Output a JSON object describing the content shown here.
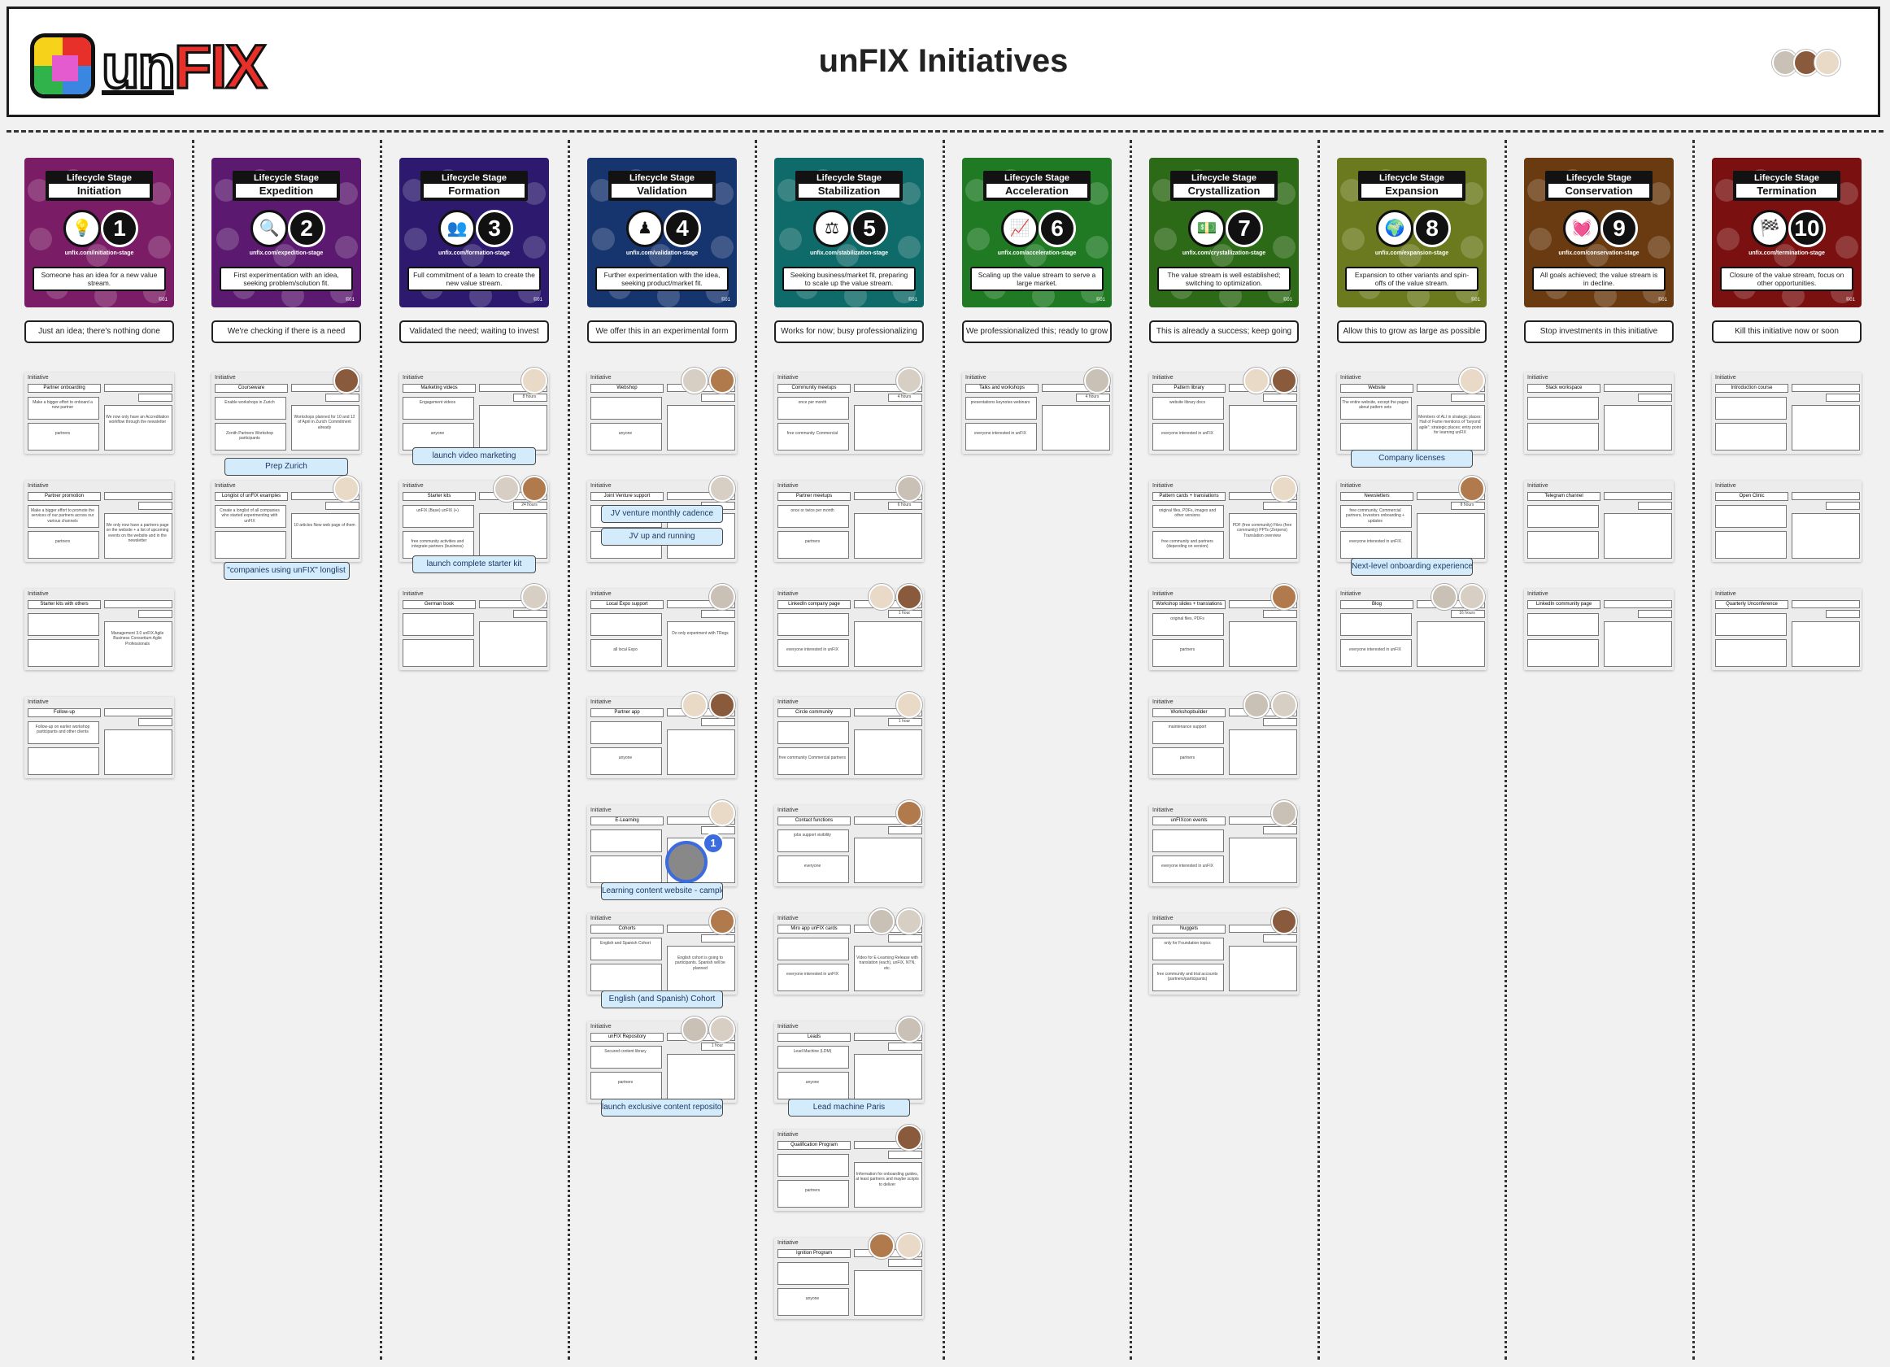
{
  "header": {
    "title": "unFIX Initiatives",
    "logo_un": "un",
    "logo_fix": "FIX"
  },
  "stage_label": "Lifecycle Stage",
  "colors": {
    "initiation": "#7a1c66",
    "expedition": "#5b1a70",
    "formation": "#2d1a6e",
    "validation": "#16356e",
    "stabilization": "#0f6a6a",
    "acceleration": "#1f7a23",
    "crystallization": "#2c6a17",
    "expansion": "#6b7a1e",
    "conservation": "#6a3a10",
    "termination": "#7a1010",
    "sticky": "#d3ebfb"
  },
  "columns": [
    {
      "key": "initiation",
      "stage": "Initiation",
      "num": "1",
      "icon": "lightbulb-icon",
      "glyph": "💡",
      "url": "unfix.com/initiation-stage",
      "desc": "Someone has an idea for a new value stream.",
      "status": "Just an idea; there's nothing done",
      "cards": [
        {
          "name": "Partner onboarding",
          "b1": "Make a bigger effort to onboard a new partner",
          "b2": "partners",
          "r3": "We now only have an Accreditation workflow through the newsletter",
          "r2": ""
        },
        {
          "name": "Partner promotion",
          "b1": "Make a bigger effort to promote the services of our partners across our various channels",
          "b2": "partners",
          "r3": "We only now have a partners page on the website + a list of upcoming events on the website and in the newsletter",
          "r2": ""
        },
        {
          "name": "Starter kits with others",
          "b1": "",
          "b2": "",
          "r3": "Management 3.0 unFIX Agile Business Consortium Agile Professionals",
          "r2": ""
        },
        {
          "name": "Follow-up",
          "b1": "Follow-up on earlier workshop participants and other clients",
          "b2": "",
          "r3": "",
          "r2": ""
        }
      ],
      "stickies": []
    },
    {
      "key": "expedition",
      "stage": "Expedition",
      "num": "2",
      "icon": "magnifier-icon",
      "glyph": "🔍",
      "url": "unfix.com/expedition-stage",
      "desc": "First experimentation with an idea, seeking problem/solution fit.",
      "status": "We're checking if there is a need",
      "cards": [
        {
          "name": "Courseware",
          "b1": "Enable workshops in Zurich",
          "b2": "Zenith Partners Workshop participants",
          "r3": "Workshops planned for 10 and 12 of April in Zurich Commitment already",
          "r2": ""
        },
        {
          "name": "Longlist of unFIX examples",
          "b1": "Create a longlist of all companies who started experimenting with unFIX",
          "b2": "",
          "r3": "10 articles New web page of them",
          "r2": ""
        }
      ],
      "stickies": [
        "Prep Zurich",
        "\"companies using unFIX\" longlist"
      ]
    },
    {
      "key": "formation",
      "stage": "Formation",
      "num": "3",
      "icon": "team-icon",
      "glyph": "👥",
      "url": "unfix.com/formation-stage",
      "desc": "Full commitment of a team to create the new value stream.",
      "status": "Validated the need; waiting to invest",
      "cards": [
        {
          "name": "Marketing videos",
          "b1": "Engagement videos",
          "b2": "anyone",
          "r3": "",
          "r2": "8 hours"
        },
        {
          "name": "Starter kits",
          "b1": "unFIX (Base) unFIX (+)",
          "b2": "free community activities and integrate partners (business)",
          "r3": "",
          "r2": "24 hours"
        },
        {
          "name": "German book",
          "b1": "",
          "b2": "",
          "r3": "",
          "r2": ""
        }
      ],
      "stickies": [
        "launch video marketing",
        "launch complete starter kit"
      ]
    },
    {
      "key": "validation",
      "stage": "Validation",
      "num": "4",
      "icon": "chess-piece-icon",
      "glyph": "♟",
      "url": "unfix.com/validation-stage",
      "desc": "Further experimentation with the idea, seeking product/market fit.",
      "status": "We offer this in an experimental form",
      "cards": [
        {
          "name": "Webshop",
          "b1": "",
          "b2": "anyone",
          "r3": "",
          "r2": ""
        },
        {
          "name": "Joint Venture support",
          "b1": "",
          "b2": "",
          "r3": "",
          "r2": ""
        },
        {
          "name": "Local Expo support",
          "b1": "",
          "b2": "all local Expo",
          "r3": "Do only experiment with TRegs",
          "r2": ""
        },
        {
          "name": "Partner app",
          "b1": "",
          "b2": "anyone",
          "r3": "",
          "r2": ""
        },
        {
          "name": "E-Learning",
          "b1": "",
          "b2": "",
          "r3": "",
          "r2": ""
        },
        {
          "name": "Cohorts",
          "b1": "English and Spanish Cohort",
          "b2": "",
          "r3": "English cohort is going to participants. Spanish will be planned",
          "r2": ""
        },
        {
          "name": "unFIX Repository",
          "b1": "Secured content library",
          "b2": "partners",
          "r3": "",
          "r2": "1 hour"
        }
      ],
      "stickies": [
        "JV venture monthly cadence",
        "JV up and running",
        "Learning content website - cample gro",
        "English (and Spanish) Cohort",
        "launch exclusive content repository"
      ]
    },
    {
      "key": "stabilization",
      "stage": "Stabilization",
      "num": "5",
      "icon": "scales-icon",
      "glyph": "⚖",
      "url": "unfix.com/stabilization-stage",
      "desc": "Seeking business/market fit, preparing to scale up the value stream.",
      "status": "Works for now; busy professionalizing",
      "cards": [
        {
          "name": "Community meetups",
          "b1": "once per month",
          "b2": "free community Commercial",
          "r3": "",
          "r2": "4 hours"
        },
        {
          "name": "Partner meetups",
          "b1": "once or twice per month",
          "b2": "partners",
          "r3": "",
          "r2": "6 hours"
        },
        {
          "name": "LinkedIn company page",
          "b1": "",
          "b2": "everyone interested in unFIX",
          "r3": "",
          "r2": "1 hour"
        },
        {
          "name": "Circle community",
          "b1": "",
          "b2": "free community Commercial partners",
          "r3": "",
          "r2": "1 hour"
        },
        {
          "name": "Contact functions",
          "b1": "jobs support visibility",
          "b2": "everyone",
          "r3": "",
          "r2": ""
        },
        {
          "name": "Miro app unFIX cards",
          "b1": "",
          "b2": "everyone interested in unFIX",
          "r3": "Video for E-Learning Release with translation (each), unFIX, NTN, etc.",
          "r2": ""
        },
        {
          "name": "Leads",
          "b1": "Lead Machine (LDM)",
          "b2": "anyone",
          "r3": "",
          "r2": ""
        },
        {
          "name": "Qualification Program",
          "b1": "",
          "b2": "partners",
          "r3": "Information for onboarding guides, at least partners and maybe scripts to deliver",
          "r2": ""
        },
        {
          "name": "Ignition Program",
          "b1": "",
          "b2": "anyone",
          "r3": "",
          "r2": ""
        }
      ],
      "stickies": [
        "Lead machine Paris"
      ]
    },
    {
      "key": "acceleration",
      "stage": "Acceleration",
      "num": "6",
      "icon": "growth-chart-icon",
      "glyph": "📈",
      "url": "unfix.com/acceleration-stage",
      "desc": "Scaling up the value stream to serve a large market.",
      "status": "We professionalized this; ready to grow",
      "cards": [
        {
          "name": "Talks and workshops",
          "b1": "presentations keynotes webinars",
          "b2": "everyone interested in unFIX",
          "r3": "",
          "r2": "4 hours"
        }
      ],
      "stickies": []
    },
    {
      "key": "crystallization",
      "stage": "Crystallization",
      "num": "7",
      "icon": "money-icon",
      "glyph": "💵",
      "url": "unfix.com/crystallization-stage",
      "desc": "The value stream is well established; switching to optimization.",
      "status": "This is already a success; keep going",
      "cards": [
        {
          "name": "Pattern library",
          "b1": "website library docs",
          "b2": "everyone interested in unFIX",
          "r3": "",
          "r2": ""
        },
        {
          "name": "Pattern cards + translations",
          "b1": "original files, PDFs, images and other versions",
          "b2": "free community and partners (depending on version)",
          "r3": "PDF (free community) Files (free community) PPTs (Zerpens) Translation overview",
          "r2": ""
        },
        {
          "name": "Workshop slides + translations",
          "b1": "original files, PDFs",
          "b2": "partners",
          "r3": "",
          "r2": ""
        },
        {
          "name": "Workshopbuilder",
          "b1": "maintenance support",
          "b2": "partners",
          "r3": "",
          "r2": ""
        },
        {
          "name": "unFIXcon events",
          "b1": "",
          "b2": "everyone interested in unFIX",
          "r3": "",
          "r2": ""
        },
        {
          "name": "Nuggets",
          "b1": "only for Foundation topics",
          "b2": "free community and trial accounts (partners/participants)",
          "r3": "",
          "r2": ""
        }
      ],
      "stickies": []
    },
    {
      "key": "expansion",
      "stage": "Expansion",
      "num": "8",
      "icon": "globe-icon",
      "glyph": "🌍",
      "url": "unfix.com/expansion-stage",
      "desc": "Expansion to other variants and spin-offs of the value stream.",
      "status": "Allow this to grow as large as possible",
      "cards": [
        {
          "name": "Website",
          "b1": "The entire website, except the pages about pattern sets",
          "b2": "",
          "r3": "Members of ALI in strategic places: Hall of Fame mentions of \"beyond agile\"; strategic places; entry point for learning unFIX",
          "r2": ""
        },
        {
          "name": "Newsletters",
          "b1": "free community, Commercial partners, Investors onboarding + updates",
          "b2": "everyone interested in unFIX",
          "r3": "",
          "r2": "8 hours"
        },
        {
          "name": "Blog",
          "b1": "",
          "b2": "everyone interested in unFIX",
          "r3": "",
          "r2": "16 hours"
        }
      ],
      "stickies": [
        "Company licenses",
        "Next-level onboarding experience"
      ]
    },
    {
      "key": "conservation",
      "stage": "Conservation",
      "num": "9",
      "icon": "heartbeat-icon",
      "glyph": "💓",
      "url": "unfix.com/conservation-stage",
      "desc": "All goals achieved; the value stream is in decline.",
      "status": "Stop investments in this initiative",
      "cards": [
        {
          "name": "Slack workspace",
          "b1": "",
          "b2": "",
          "r3": "",
          "r2": ""
        },
        {
          "name": "Telegram channel",
          "b1": "",
          "b2": "",
          "r3": "",
          "r2": ""
        },
        {
          "name": "LinkedIn community page",
          "b1": "",
          "b2": "",
          "r3": "",
          "r2": ""
        }
      ],
      "stickies": []
    },
    {
      "key": "termination",
      "stage": "Termination",
      "num": "10",
      "icon": "checkered-flags-icon",
      "glyph": "🏁",
      "url": "unfix.com/termination-stage",
      "desc": "Closure of the value stream, focus on other opportunities.",
      "status": "Kill this initiative now or soon",
      "cards": [
        {
          "name": "Introduction course",
          "b1": "",
          "b2": "",
          "r3": "",
          "r2": ""
        },
        {
          "name": "Open Clinic",
          "b1": "",
          "b2": "",
          "r3": "",
          "r2": ""
        },
        {
          "name": "Quarterly Unconference",
          "b1": "",
          "b2": "",
          "r3": "",
          "r2": ""
        }
      ],
      "stickies": []
    }
  ],
  "card_label": "Initiative",
  "copyright": "©01",
  "collab_badge": "1"
}
